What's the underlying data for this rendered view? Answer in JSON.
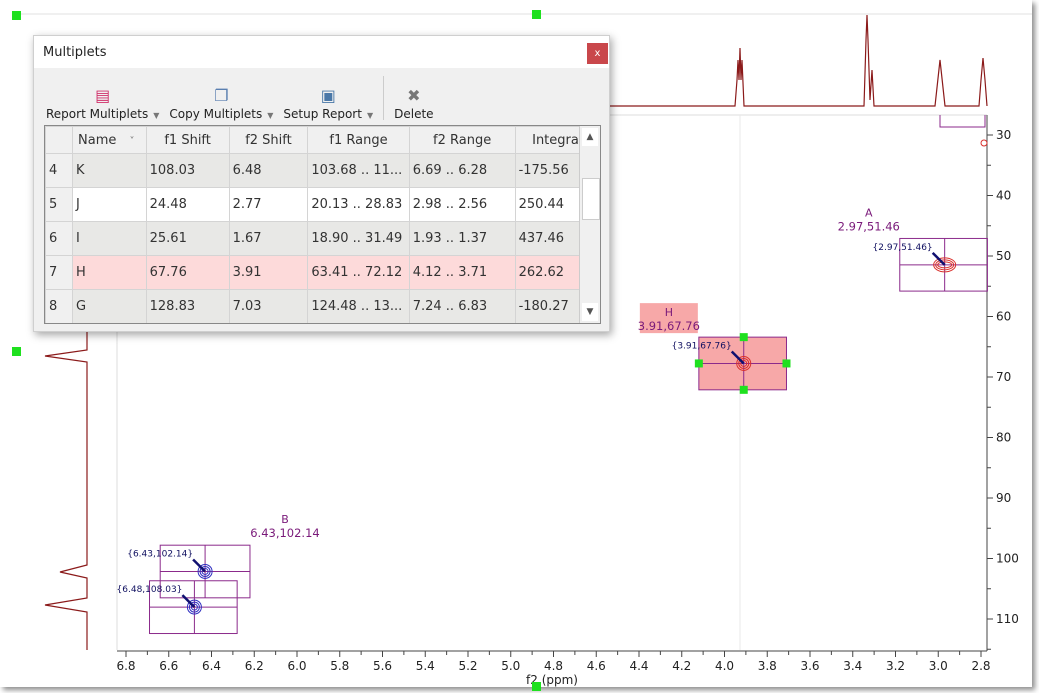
{
  "dialog": {
    "title": "Multiplets",
    "close_label": "x",
    "toolbar": [
      {
        "label": "Report Multiplets",
        "icon": "report-icon",
        "dropdown": true
      },
      {
        "label": "Copy Multiplets",
        "icon": "copy-icon",
        "dropdown": true
      },
      {
        "label": "Setup Report",
        "icon": "setup-icon",
        "dropdown": true
      },
      {
        "label": "Delete",
        "icon": "delete-icon",
        "dropdown": false
      }
    ],
    "columns": [
      "",
      "Name",
      "f1 Shift",
      "f2 Shift",
      "f1 Range",
      "f2 Range",
      "Integral"
    ],
    "rows": [
      {
        "n": "4",
        "name": "K",
        "f1": "108.03",
        "f2": "6.48",
        "f1r": "103.68 .. 11...",
        "f2r": "6.69 .. 6.28",
        "integral": "-175.56",
        "style": "g"
      },
      {
        "n": "5",
        "name": "J",
        "f1": "24.48",
        "f2": "2.77",
        "f1r": "20.13 .. 28.83",
        "f2r": "2.98 .. 2.56",
        "integral": "250.44",
        "style": "w"
      },
      {
        "n": "6",
        "name": "I",
        "f1": "25.61",
        "f2": "1.67",
        "f1r": "18.90 .. 31.49",
        "f2r": "1.93 .. 1.37",
        "integral": "437.46",
        "style": "g"
      },
      {
        "n": "7",
        "name": "H",
        "f1": "67.76",
        "f2": "3.91",
        "f1r": "63.41 .. 72.12",
        "f2r": "4.12 .. 3.71",
        "integral": "262.62",
        "style": "sel"
      },
      {
        "n": "8",
        "name": "G",
        "f1": "128.83",
        "f2": "7.03",
        "f1r": "124.48 .. 13...",
        "f2r": "7.24 .. 6.83",
        "integral": "-180.27",
        "style": "g"
      }
    ]
  },
  "plot": {
    "xlabel": "f2 (ppm)",
    "xticks": [
      "6.8",
      "6.6",
      "6.4",
      "6.2",
      "6.0",
      "5.8",
      "5.6",
      "5.4",
      "5.2",
      "5.0",
      "4.8",
      "4.6",
      "4.4",
      "4.2",
      "4.0",
      "3.8",
      "3.6",
      "3.4",
      "3.2",
      "3.0",
      "2.8"
    ],
    "yticks": [
      "30",
      "40",
      "50",
      "60",
      "70",
      "80",
      "90",
      "100",
      "110"
    ],
    "xrange": [
      6.8,
      2.8
    ],
    "yrange": [
      30,
      110
    ],
    "colors": {
      "box": "#8b2a8b",
      "positive": "#d9302c",
      "negative": "#3030c0",
      "spectrum": "#8b1a1a",
      "label": "#7a1a7a",
      "selected": "#f7a8a8",
      "handle": "#1fe01f"
    },
    "multiplets": [
      {
        "name": "A",
        "f2": 2.97,
        "f1": 51.46,
        "f2r": [
          3.18,
          2.77
        ],
        "f1r": [
          47.1,
          55.8
        ],
        "label": "2.97,51.46",
        "peak": "{2.97,51.46}",
        "sign": "positive"
      },
      {
        "name": "H",
        "f2": 3.91,
        "f1": 67.76,
        "f2r": [
          4.12,
          3.71
        ],
        "f1r": [
          63.41,
          72.12
        ],
        "label": "3.91,67.76",
        "peak": "{3.91,67.76}",
        "sign": "positive",
        "selected": true
      },
      {
        "name": "B",
        "f2": 6.43,
        "f1": 102.14,
        "f2r": [
          6.64,
          6.22
        ],
        "f1r": [
          97.8,
          106.5
        ],
        "label": "6.43,102.14",
        "peak": "{6.43,102.14}",
        "sign": "negative"
      },
      {
        "name": "K",
        "f2": 6.48,
        "f1": 108.03,
        "f2r": [
          6.69,
          6.28
        ],
        "f1r": [
          103.68,
          112.4
        ],
        "label": "",
        "peak": "{6.48,108.03}",
        "sign": "negative"
      }
    ]
  }
}
